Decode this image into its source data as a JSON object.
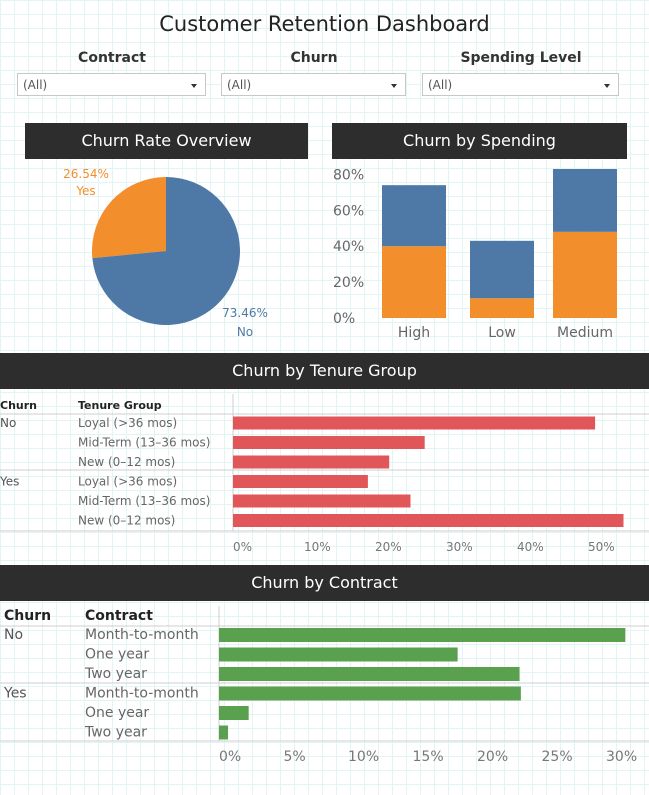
{
  "title": "Customer Retention Dashboard",
  "filters": [
    {
      "label": "Contract",
      "value": "(All)"
    },
    {
      "label": "Churn",
      "value": "(All)"
    },
    {
      "label": "Spending Level",
      "value": "(All)"
    }
  ],
  "panels": {
    "pie": "Churn Rate Overview",
    "spending": "Churn by Spending",
    "tenure": "Churn by Tenure Group",
    "contract": "Churn by Contract"
  },
  "colors": {
    "blue": "#4e79a7",
    "orange": "#f28e2b",
    "red": "#e15759",
    "green": "#59a14f"
  },
  "chart_data": [
    {
      "type": "pie",
      "slices": [
        {
          "label": "Yes",
          "pct_label": "26.54%",
          "value": 26.54,
          "color": "#f28e2b"
        },
        {
          "label": "No",
          "pct_label": "73.46%",
          "value": 73.46,
          "color": "#4e79a7"
        }
      ]
    },
    {
      "type": "bar",
      "stacked": true,
      "categories": [
        "High",
        "Low",
        "Medium"
      ],
      "series": [
        {
          "values": [
            40,
            11,
            48
          ],
          "color": "#f28e2b"
        },
        {
          "values": [
            34,
            32,
            35
          ],
          "color": "#4e79a7"
        }
      ],
      "yticks": [
        "0%",
        "20%",
        "40%",
        "60%",
        "80%"
      ],
      "ylim": [
        0,
        85
      ]
    },
    {
      "type": "bar",
      "orientation": "horizontal",
      "col_headers": [
        "Churn",
        "Tenure Group"
      ],
      "rows": [
        {
          "churn": "No",
          "group": "Loyal (>36 mos)",
          "value": 51
        },
        {
          "churn": "",
          "group": "Mid-Term (13–36 mos)",
          "value": 27
        },
        {
          "churn": "",
          "group": "New (0–12 mos)",
          "value": 22
        },
        {
          "churn": "Yes",
          "group": "Loyal (>36 mos)",
          "value": 19
        },
        {
          "churn": "",
          "group": "Mid-Term (13–36 mos)",
          "value": 25
        },
        {
          "churn": "",
          "group": "New (0–12 mos)",
          "value": 55
        }
      ],
      "xticks": [
        "0%",
        "10%",
        "20%",
        "30%",
        "40%",
        "50%"
      ],
      "color": "#e15759"
    },
    {
      "type": "bar",
      "orientation": "horizontal",
      "col_headers": [
        "Churn",
        "Contract"
      ],
      "rows": [
        {
          "churn": "No",
          "group": "Month-to-month",
          "value": 31.5
        },
        {
          "churn": "",
          "group": "One year",
          "value": 18.5
        },
        {
          "churn": "",
          "group": "Two year",
          "value": 23.3
        },
        {
          "churn": "Yes",
          "group": "Month-to-month",
          "value": 23.4
        },
        {
          "churn": "",
          "group": "One year",
          "value": 2.3
        },
        {
          "churn": "",
          "group": "Two year",
          "value": 0.7
        }
      ],
      "xticks": [
        "0%",
        "5%",
        "10%",
        "15%",
        "20%",
        "25%",
        "30%"
      ],
      "color": "#59a14f"
    }
  ]
}
